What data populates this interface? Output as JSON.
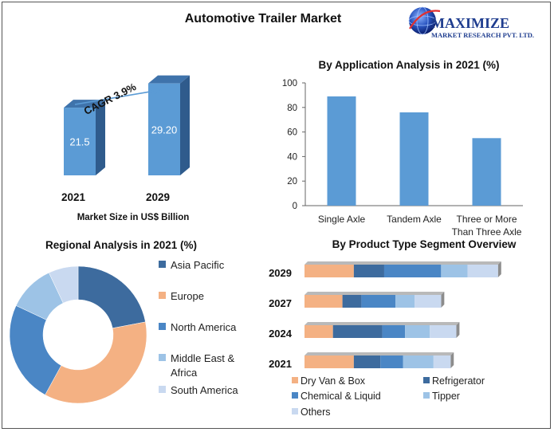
{
  "title": "Automotive Trailer Market",
  "logo": {
    "line1": "MAXIMIZE",
    "line2": "MARKET RESEARCH PVT. LTD.",
    "icon": "globe-icon"
  },
  "colors": {
    "dark_blue": "#3d6b9e",
    "mid_blue": "#4a86c5",
    "bar_blue": "#5b9bd5",
    "peach": "#f4b183",
    "light_blue": "#9dc3e6",
    "pale_blue": "#c9d9f0"
  },
  "chart_data": [
    {
      "id": "market_size",
      "type": "bar",
      "categories": [
        "2021",
        "2029"
      ],
      "values": [
        21.5,
        29.2
      ],
      "value_labels": [
        "21.5",
        "29.20"
      ],
      "xlabel": "Market Size in US$ Billion",
      "annotation": "CAGR 3.9%"
    },
    {
      "id": "application",
      "type": "bar",
      "title": "By Application Analysis in 2021 (%)",
      "categories": [
        "Single Axle",
        "Tandem Axle",
        "Three or More Than Three Axle"
      ],
      "category_lines": [
        [
          "Single Axle"
        ],
        [
          "Tandem Axle"
        ],
        [
          "Three or More",
          "Than Three Axle"
        ]
      ],
      "values": [
        89,
        76,
        55
      ],
      "ylim": [
        0,
        100
      ],
      "yticks": [
        0,
        20,
        40,
        60,
        80,
        100
      ]
    },
    {
      "id": "regional",
      "type": "pie",
      "title": "Regional Analysis in 2021 (%)",
      "categories": [
        "Asia Pacific",
        "Europe",
        "North America",
        "Middle East & Africa",
        "South America"
      ],
      "legend_lines": [
        [
          "Asia Pacific"
        ],
        [
          "Europe"
        ],
        [
          "North America"
        ],
        [
          "Middle East &",
          "Africa"
        ],
        [
          "South America"
        ]
      ],
      "values": [
        22,
        36,
        24,
        11,
        7
      ],
      "colors": [
        "#3d6b9e",
        "#f4b183",
        "#4a86c5",
        "#9dc3e6",
        "#c9d9f0"
      ]
    },
    {
      "id": "product_type",
      "type": "bar",
      "stacked": true,
      "orientation": "horizontal",
      "title": "By Product Type Segment Overview",
      "categories": [
        "2029",
        "2027",
        "2024",
        "2021"
      ],
      "series": [
        {
          "name": "Dry Van & Box",
          "color": "#f4b183",
          "values": [
            26,
            20,
            15,
            26
          ]
        },
        {
          "name": "Refrigerator",
          "color": "#3d6b9e",
          "values": [
            16,
            10,
            26,
            14
          ]
        },
        {
          "name": "Chemical & Liquid",
          "color": "#4a86c5",
          "values": [
            30,
            18,
            12,
            12
          ]
        },
        {
          "name": "Tipper",
          "color": "#9dc3e6",
          "values": [
            14,
            10,
            13,
            16
          ]
        },
        {
          "name": "Others",
          "color": "#c9d9f0",
          "values": [
            16,
            14,
            14,
            9
          ]
        }
      ]
    }
  ]
}
